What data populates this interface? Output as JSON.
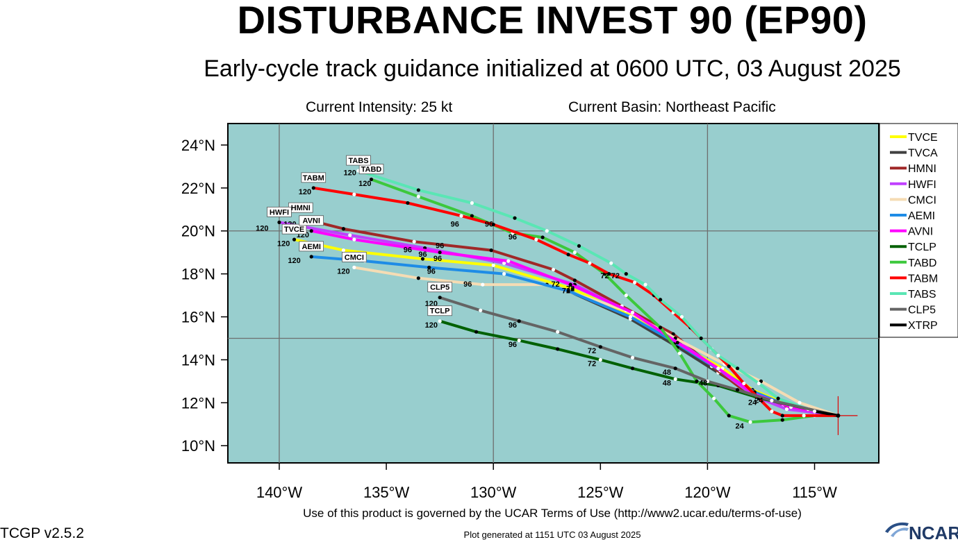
{
  "header": {
    "title": "DISTURBANCE INVEST 90 (EP90)",
    "subtitle": "Early-cycle track guidance initialized at 0600 UTC, 03 August 2025",
    "intensity": "Current Intensity: 25 kt",
    "basin": "Current Basin: Northeast Pacific"
  },
  "footer": {
    "terms": "Use of this product is governed by the UCAR Terms of Use (http://www2.ucar.edu/terms-of-use)",
    "version": "TCGP v2.5.2",
    "generated": "Plot generated at 1151 UTC   03 August 2025",
    "logo_text": "NCAR"
  },
  "colors": {
    "ocean": "#98cece",
    "grid": "#6e6e6e",
    "current_position_marker": "#e00000"
  },
  "chart_data": {
    "type": "map-track",
    "xlim": [
      -142.4,
      -112.0
    ],
    "ylim": [
      9.2,
      25.0
    ],
    "lon_ticks": [
      {
        "v": -140,
        "label": "140°W"
      },
      {
        "v": -135,
        "label": "135°W"
      },
      {
        "v": -130,
        "label": "130°W"
      },
      {
        "v": -125,
        "label": "125°W"
      },
      {
        "v": -120,
        "label": "120°W"
      },
      {
        "v": -115,
        "label": "115°W"
      }
    ],
    "lat_ticks": [
      {
        "v": 10,
        "label": "10°N"
      },
      {
        "v": 12,
        "label": "12°N"
      },
      {
        "v": 14,
        "label": "14°N"
      },
      {
        "v": 16,
        "label": "16°N"
      },
      {
        "v": 18,
        "label": "18°N"
      },
      {
        "v": 20,
        "label": "20°N"
      },
      {
        "v": 22,
        "label": "22°N"
      },
      {
        "v": 24,
        "label": "24°N"
      }
    ],
    "grid_lons": [
      -140,
      -130,
      -120
    ],
    "grid_lats": [
      15,
      20
    ],
    "origin": [
      -113.9,
      11.4
    ],
    "legend_position": "right",
    "series": [
      {
        "name": "TVCE",
        "color": "#ffff00",
        "endlabel": "TVCE",
        "points": [
          [
            -113.9,
            11.4
          ],
          [
            -116.2,
            11.9
          ],
          [
            -117.9,
            12.6
          ],
          [
            -119.3,
            13.6
          ],
          [
            -121.3,
            14.7
          ],
          [
            -123.5,
            16.0
          ],
          [
            -126.3,
            17.3
          ],
          [
            -130.0,
            18.4
          ],
          [
            -133.3,
            18.7
          ],
          [
            -137.0,
            19.1
          ],
          [
            -139.3,
            19.6
          ]
        ],
        "labels": [
          {
            "t": "72",
            "lon": -126.6,
            "lat": 17.1
          },
          {
            "t": "96",
            "lon": -132.6,
            "lat": 18.6
          },
          {
            "t": "120",
            "lon": -139.8,
            "lat": 19.3
          }
        ]
      },
      {
        "name": "TVCA",
        "color": "#404040",
        "points": [
          [
            -113.9,
            11.4
          ],
          [
            -116.4,
            11.8
          ],
          [
            -118.0,
            12.5
          ],
          [
            -119.5,
            13.4
          ],
          [
            -121.4,
            14.6
          ],
          [
            -123.6,
            15.9
          ],
          [
            -126.5,
            17.2
          ]
        ],
        "labels": []
      },
      {
        "name": "HMNI",
        "color": "#a02828",
        "endlabel": "HMNI",
        "points": [
          [
            -113.9,
            11.4
          ],
          [
            -116.5,
            11.8
          ],
          [
            -118.2,
            12.5
          ],
          [
            -119.8,
            13.7
          ],
          [
            -121.6,
            15.2
          ],
          [
            -124.0,
            16.5
          ],
          [
            -126.2,
            17.7
          ],
          [
            -127.2,
            18.2
          ],
          [
            -130.1,
            19.1
          ],
          [
            -133.7,
            19.5
          ],
          [
            -137.0,
            20.1
          ],
          [
            -139.0,
            20.6
          ]
        ],
        "labels": [
          {
            "t": "96",
            "lon": -132.5,
            "lat": 19.2
          },
          {
            "t": "120",
            "lon": -139.5,
            "lat": 20.2
          }
        ]
      },
      {
        "name": "HWFI",
        "color": "#c040ff",
        "endlabel": "HWFI",
        "points": [
          [
            -113.9,
            11.4
          ],
          [
            -116.3,
            11.7
          ],
          [
            -117.8,
            12.3
          ],
          [
            -119.4,
            13.5
          ],
          [
            -121.3,
            14.8
          ],
          [
            -123.4,
            16.1
          ],
          [
            -126.2,
            17.5
          ],
          [
            -129.5,
            18.5
          ],
          [
            -133.2,
            19.2
          ],
          [
            -136.7,
            19.8
          ],
          [
            -140.0,
            20.4
          ]
        ],
        "labels": [
          {
            "t": "72",
            "lon": -127.1,
            "lat": 17.4
          },
          {
            "t": "96",
            "lon": -134.0,
            "lat": 19.0
          },
          {
            "t": "120",
            "lon": -140.8,
            "lat": 20.0
          }
        ]
      },
      {
        "name": "CMCI",
        "color": "#f5dcb4",
        "endlabel": "CMCI",
        "points": [
          [
            -113.9,
            11.4
          ],
          [
            -115.7,
            12.0
          ],
          [
            -117.5,
            13.0
          ],
          [
            -119.2,
            13.8
          ],
          [
            -121.5,
            15.0
          ],
          [
            -123.8,
            16.3
          ],
          [
            -127.5,
            17.5
          ],
          [
            -130.5,
            17.5
          ],
          [
            -133.5,
            17.8
          ],
          [
            -136.5,
            18.3
          ]
        ],
        "labels": [
          {
            "t": "96",
            "lon": -131.2,
            "lat": 17.4
          },
          {
            "t": "120",
            "lon": -137.0,
            "lat": 18.0
          }
        ]
      },
      {
        "name": "AEMI",
        "color": "#1e8ce6",
        "endlabel": "AEMI",
        "points": [
          [
            -113.9,
            11.4
          ],
          [
            -116.1,
            11.8
          ],
          [
            -117.8,
            12.5
          ],
          [
            -119.4,
            13.5
          ],
          [
            -121.5,
            14.8
          ],
          [
            -123.6,
            16.0
          ],
          [
            -126.5,
            17.2
          ],
          [
            -129.5,
            18.0
          ],
          [
            -133.0,
            18.3
          ],
          [
            -136.0,
            18.6
          ],
          [
            -138.5,
            18.8
          ]
        ],
        "labels": [
          {
            "t": "96",
            "lon": -132.9,
            "lat": 18.0
          },
          {
            "t": "120",
            "lon": -139.3,
            "lat": 18.5
          }
        ]
      },
      {
        "name": "AVNI",
        "color": "#ff00ff",
        "endlabel": "AVNI",
        "points": [
          [
            -113.9,
            11.4
          ],
          [
            -116.1,
            11.8
          ],
          [
            -117.8,
            12.4
          ],
          [
            -119.5,
            13.6
          ],
          [
            -121.4,
            14.8
          ],
          [
            -123.5,
            16.2
          ],
          [
            -126.4,
            17.5
          ],
          [
            -129.3,
            18.6
          ],
          [
            -132.5,
            19.0
          ],
          [
            -136.5,
            19.6
          ],
          [
            -138.5,
            20.0
          ]
        ],
        "labels": [
          {
            "t": "72",
            "lon": -126.4,
            "lat": 17.2
          },
          {
            "t": "96",
            "lon": -133.3,
            "lat": 18.8
          },
          {
            "t": "120",
            "lon": -138.9,
            "lat": 19.7
          }
        ]
      },
      {
        "name": "TCLP",
        "color": "#006000",
        "endlabel": "TCLP",
        "points": [
          [
            -113.9,
            11.4
          ],
          [
            -117.5,
            12.2
          ],
          [
            -119.5,
            12.8
          ],
          [
            -121.5,
            13.1
          ],
          [
            -123.5,
            13.6
          ],
          [
            -125.0,
            14.0
          ],
          [
            -127.0,
            14.5
          ],
          [
            -128.8,
            14.9
          ],
          [
            -130.8,
            15.3
          ],
          [
            -132.5,
            15.8
          ]
        ],
        "labels": [
          {
            "t": "24",
            "lon": -117.9,
            "lat": 11.9
          },
          {
            "t": "48",
            "lon": -121.9,
            "lat": 12.8
          },
          {
            "t": "72",
            "lon": -125.4,
            "lat": 13.7
          },
          {
            "t": "96",
            "lon": -129.1,
            "lat": 14.6
          },
          {
            "t": "120",
            "lon": -132.9,
            "lat": 15.5
          }
        ]
      },
      {
        "name": "TABD",
        "color": "#3cc83c",
        "endlabel": "TABD",
        "points": [
          [
            -113.9,
            11.4
          ],
          [
            -115.0,
            11.4
          ],
          [
            -116.5,
            11.2
          ],
          [
            -118.0,
            11.1
          ],
          [
            -119.0,
            11.4
          ],
          [
            -119.7,
            12.2
          ],
          [
            -120.5,
            13.0
          ],
          [
            -121.3,
            14.3
          ],
          [
            -122.2,
            15.5
          ],
          [
            -123.8,
            17.0
          ],
          [
            -124.8,
            18.0
          ],
          [
            -126.2,
            19.0
          ],
          [
            -127.7,
            19.7
          ],
          [
            -129.1,
            19.9
          ],
          [
            -131.0,
            20.7
          ],
          [
            -133.5,
            21.6
          ],
          [
            -135.7,
            22.4
          ]
        ],
        "labels": [
          {
            "t": "24",
            "lon": -118.5,
            "lat": 10.8
          },
          {
            "t": "48",
            "lon": -120.2,
            "lat": 12.8
          },
          {
            "t": "96",
            "lon": -129.1,
            "lat": 19.6
          },
          {
            "t": "120",
            "lon": -136.0,
            "lat": 22.1
          }
        ]
      },
      {
        "name": "TABM",
        "color": "#ff0000",
        "endlabel": "TABM",
        "points": [
          [
            -113.9,
            11.4
          ],
          [
            -115.5,
            11.4
          ],
          [
            -116.5,
            11.4
          ],
          [
            -117.0,
            11.6
          ],
          [
            -117.6,
            12.2
          ],
          [
            -118.3,
            12.9
          ],
          [
            -119.0,
            13.7
          ],
          [
            -119.8,
            14.5
          ],
          [
            -120.8,
            15.5
          ],
          [
            -121.6,
            16.2
          ],
          [
            -122.5,
            17.0
          ],
          [
            -123.4,
            17.6
          ],
          [
            -124.6,
            18.0
          ],
          [
            -125.5,
            18.5
          ],
          [
            -126.5,
            18.9
          ],
          [
            -128.0,
            19.6
          ],
          [
            -130.0,
            20.3
          ],
          [
            -131.5,
            20.7
          ],
          [
            -134.0,
            21.3
          ],
          [
            -136.5,
            21.7
          ],
          [
            -138.4,
            22.0
          ]
        ],
        "labels": [
          {
            "t": "24",
            "lon": -117.6,
            "lat": 12.0
          },
          {
            "t": "72",
            "lon": -124.8,
            "lat": 17.8
          },
          {
            "t": "96",
            "lon": -131.8,
            "lat": 20.2
          },
          {
            "t": "120",
            "lon": -138.8,
            "lat": 21.7
          }
        ]
      },
      {
        "name": "TABS",
        "color": "#5ae6b4",
        "endlabel": "TABS",
        "points": [
          [
            -113.9,
            11.4
          ],
          [
            -115.3,
            11.7
          ],
          [
            -116.7,
            12.2
          ],
          [
            -117.6,
            12.9
          ],
          [
            -118.6,
            13.6
          ],
          [
            -119.5,
            14.2
          ],
          [
            -120.3,
            15.0
          ],
          [
            -121.2,
            16.0
          ],
          [
            -122.2,
            16.8
          ],
          [
            -122.9,
            17.5
          ],
          [
            -123.8,
            18.0
          ],
          [
            -124.5,
            18.5
          ],
          [
            -126.0,
            19.3
          ],
          [
            -127.5,
            20.0
          ],
          [
            -129.0,
            20.6
          ],
          [
            -131.0,
            21.3
          ],
          [
            -133.5,
            21.9
          ],
          [
            -136.3,
            22.8
          ]
        ],
        "labels": [
          {
            "t": "72",
            "lon": -124.3,
            "lat": 17.8
          },
          {
            "t": "96",
            "lon": -130.2,
            "lat": 20.2
          },
          {
            "t": "120",
            "lon": -136.7,
            "lat": 22.6
          }
        ]
      },
      {
        "name": "CLP5",
        "color": "#646464",
        "endlabel": "CLP5",
        "points": [
          [
            -113.9,
            11.4
          ],
          [
            -117.0,
            12.1
          ],
          [
            -118.6,
            12.6
          ],
          [
            -120.0,
            13.0
          ],
          [
            -121.5,
            13.6
          ],
          [
            -123.5,
            14.1
          ],
          [
            -125.0,
            14.6
          ],
          [
            -127.0,
            15.3
          ],
          [
            -128.8,
            15.8
          ],
          [
            -130.6,
            16.3
          ],
          [
            -132.5,
            16.9
          ]
        ],
        "labels": [
          {
            "t": "48",
            "lon": -121.9,
            "lat": 13.3
          },
          {
            "t": "72",
            "lon": -125.4,
            "lat": 14.3
          },
          {
            "t": "96",
            "lon": -129.1,
            "lat": 15.5
          },
          {
            "t": "120",
            "lon": -132.9,
            "lat": 16.5
          }
        ]
      },
      {
        "name": "XTRP",
        "color": "#000000",
        "points": [
          [
            -113.9,
            11.4
          ],
          [
            -115.0,
            11.6
          ]
        ],
        "labels": []
      }
    ]
  }
}
